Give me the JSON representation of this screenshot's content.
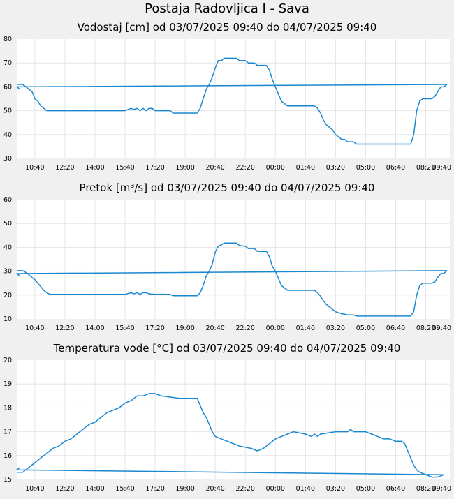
{
  "page": {
    "title": "Postaja Radovljica I - Sava"
  },
  "colors": {
    "line": "#1a88d0",
    "plot_background": "#ffffff",
    "page_background": "#f0f0f0",
    "grid": "#e6e6e6"
  },
  "chart_data": [
    {
      "type": "line",
      "title": "Vodostaj [cm] od 03/07/2025 09:40 do 04/07/2025 09:40",
      "xlabel": "",
      "ylabel": "",
      "x_ticks": [
        "10:40",
        "12:20",
        "14:00",
        "15:40",
        "17:20",
        "19:00",
        "20:40",
        "22:20",
        "00:00",
        "01:40",
        "03:20",
        "05:00",
        "06:40",
        "08:20",
        "09:40"
      ],
      "y_ticks": [
        "30",
        "40",
        "50",
        "60",
        "70",
        "80"
      ],
      "ylim": [
        30,
        80
      ],
      "grid": true,
      "series": [
        {
          "points": [
            [
              "09:40",
              61
            ],
            [
              "10:00",
              61
            ],
            [
              "10:10",
              60
            ],
            [
              "10:20",
              59
            ],
            [
              "10:30",
              58
            ],
            [
              "10:35",
              57
            ],
            [
              "10:40",
              55
            ],
            [
              "10:50",
              54
            ],
            [
              "11:00",
              52
            ],
            [
              "11:10",
              51
            ],
            [
              "11:20",
              50
            ],
            [
              "15:40",
              50
            ],
            [
              "16:00",
              51
            ],
            [
              "16:10",
              50.5
            ],
            [
              "16:20",
              51
            ],
            [
              "16:30",
              50
            ],
            [
              "16:40",
              51
            ],
            [
              "16:50",
              50
            ],
            [
              "17:00",
              51
            ],
            [
              "17:10",
              51
            ],
            [
              "17:20",
              50
            ],
            [
              "18:10",
              50
            ],
            [
              "18:20",
              49
            ],
            [
              "19:40",
              49
            ],
            [
              "19:50",
              51
            ],
            [
              "20:00",
              55
            ],
            [
              "20:10",
              59
            ],
            [
              "20:20",
              61
            ],
            [
              "20:30",
              64
            ],
            [
              "20:40",
              68
            ],
            [
              "20:50",
              71
            ],
            [
              "21:00",
              71
            ],
            [
              "21:10",
              72
            ],
            [
              "21:50",
              72
            ],
            [
              "22:00",
              71
            ],
            [
              "22:20",
              71
            ],
            [
              "22:30",
              70
            ],
            [
              "22:50",
              70
            ],
            [
              "23:00",
              69
            ],
            [
              "23:30",
              69
            ],
            [
              "23:40",
              67
            ],
            [
              "23:50",
              63
            ],
            [
              "00:00",
              60
            ],
            [
              "00:10",
              57
            ],
            [
              "00:20",
              54
            ],
            [
              "00:40",
              52
            ],
            [
              "02:10",
              52
            ],
            [
              "02:20",
              51
            ],
            [
              "02:30",
              49
            ],
            [
              "02:40",
              46
            ],
            [
              "02:50",
              44
            ],
            [
              "03:00",
              43
            ],
            [
              "03:10",
              42
            ],
            [
              "03:20",
              40
            ],
            [
              "03:30",
              39
            ],
            [
              "03:40",
              38
            ],
            [
              "03:50",
              38
            ],
            [
              "04:00",
              37
            ],
            [
              "04:20",
              37
            ],
            [
              "04:30",
              36
            ],
            [
              "07:30",
              36
            ],
            [
              "07:40",
              40
            ],
            [
              "07:50",
              50
            ],
            [
              "08:00",
              54
            ],
            [
              "08:10",
              55
            ],
            [
              "08:40",
              55
            ],
            [
              "08:50",
              56
            ],
            [
              "09:00",
              58
            ],
            [
              "09:10",
              60
            ],
            [
              "09:20",
              60
            ],
            [
              "09:30",
              61
            ],
            [
              "09:40",
              60
            ],
            [
              "09:50",
              59
            ]
          ]
        }
      ]
    },
    {
      "type": "line",
      "title": "Pretok [m³/s] od 03/07/2025 09:40 do 04/07/2025 09:40",
      "xlabel": "",
      "ylabel": "",
      "x_ticks": [
        "10:40",
        "12:20",
        "14:00",
        "15:40",
        "17:20",
        "19:00",
        "20:40",
        "22:20",
        "00:00",
        "01:40",
        "03:20",
        "05:00",
        "06:40",
        "08:20",
        "09:40"
      ],
      "y_ticks": [
        "10",
        "20",
        "30",
        "40",
        "50",
        "60"
      ],
      "ylim": [
        10,
        60
      ],
      "grid": true,
      "series": [
        {
          "points": [
            [
              "09:40",
              30.2
            ],
            [
              "10:00",
              30.2
            ],
            [
              "10:10",
              29.5
            ],
            [
              "10:20",
              28.5
            ],
            [
              "10:30",
              27.5
            ],
            [
              "10:40",
              26.5
            ],
            [
              "10:50",
              25
            ],
            [
              "11:00",
              23.5
            ],
            [
              "11:10",
              22
            ],
            [
              "11:20",
              21
            ],
            [
              "11:30",
              20.3
            ],
            [
              "15:40",
              20.3
            ],
            [
              "16:00",
              21
            ],
            [
              "16:10",
              20.5
            ],
            [
              "16:20",
              21
            ],
            [
              "16:30",
              20.3
            ],
            [
              "16:40",
              21
            ],
            [
              "16:50",
              21
            ],
            [
              "17:00",
              20.5
            ],
            [
              "17:20",
              20.3
            ],
            [
              "18:10",
              20.3
            ],
            [
              "18:20",
              19.7
            ],
            [
              "19:40",
              19.7
            ],
            [
              "19:50",
              21
            ],
            [
              "20:00",
              24
            ],
            [
              "20:10",
              28
            ],
            [
              "20:20",
              30
            ],
            [
              "20:30",
              33
            ],
            [
              "20:40",
              38
            ],
            [
              "20:50",
              40.5
            ],
            [
              "21:00",
              41
            ],
            [
              "21:10",
              41.8
            ],
            [
              "21:50",
              41.8
            ],
            [
              "22:00",
              40.8
            ],
            [
              "22:20",
              40.5
            ],
            [
              "22:30",
              39.5
            ],
            [
              "22:50",
              39.5
            ],
            [
              "23:00",
              38.3
            ],
            [
              "23:30",
              38.3
            ],
            [
              "23:40",
              36
            ],
            [
              "23:50",
              32
            ],
            [
              "00:00",
              30
            ],
            [
              "00:10",
              27
            ],
            [
              "00:20",
              24
            ],
            [
              "00:40",
              22
            ],
            [
              "02:10",
              22
            ],
            [
              "02:20",
              21
            ],
            [
              "02:30",
              19.5
            ],
            [
              "02:40",
              17.5
            ],
            [
              "02:50",
              16
            ],
            [
              "03:00",
              15
            ],
            [
              "03:10",
              14
            ],
            [
              "03:20",
              13
            ],
            [
              "03:40",
              12.2
            ],
            [
              "03:50",
              12
            ],
            [
              "04:00",
              11.7
            ],
            [
              "04:20",
              11.7
            ],
            [
              "04:30",
              11.2
            ],
            [
              "07:30",
              11.2
            ],
            [
              "07:40",
              13
            ],
            [
              "07:50",
              20
            ],
            [
              "08:00",
              24
            ],
            [
              "08:10",
              25
            ],
            [
              "08:40",
              25
            ],
            [
              "08:50",
              25.5
            ],
            [
              "09:00",
              27.5
            ],
            [
              "09:10",
              29
            ],
            [
              "09:20",
              29
            ],
            [
              "09:30",
              30.2
            ],
            [
              "09:40",
              29
            ],
            [
              "09:50",
              28
            ]
          ]
        }
      ]
    },
    {
      "type": "line",
      "title": "Temperatura vode [°C] od 03/07/2025 09:40 do 04/07/2025 09:40",
      "xlabel": "",
      "ylabel": "",
      "x_ticks": [
        "10:40",
        "12:20",
        "14:00",
        "15:40",
        "17:20",
        "19:00",
        "20:40",
        "22:20",
        "00:00",
        "01:40",
        "03:20",
        "05:00",
        "06:40",
        "08:20",
        "09:40"
      ],
      "y_ticks": [
        "15",
        "16",
        "17",
        "18",
        "19",
        "20"
      ],
      "ylim": [
        15,
        20
      ],
      "grid": true,
      "series": [
        {
          "points": [
            [
              "09:40",
              15.3
            ],
            [
              "10:00",
              15.3
            ],
            [
              "10:10",
              15.4
            ],
            [
              "10:20",
              15.5
            ],
            [
              "10:40",
              15.7
            ],
            [
              "11:00",
              15.9
            ],
            [
              "11:20",
              16.1
            ],
            [
              "11:40",
              16.3
            ],
            [
              "12:00",
              16.4
            ],
            [
              "12:20",
              16.6
            ],
            [
              "12:40",
              16.7
            ],
            [
              "13:00",
              16.9
            ],
            [
              "13:20",
              17.1
            ],
            [
              "13:40",
              17.3
            ],
            [
              "14:00",
              17.4
            ],
            [
              "14:20",
              17.6
            ],
            [
              "14:40",
              17.8
            ],
            [
              "15:00",
              17.9
            ],
            [
              "15:20",
              18.0
            ],
            [
              "15:40",
              18.2
            ],
            [
              "16:00",
              18.3
            ],
            [
              "16:20",
              18.5
            ],
            [
              "16:40",
              18.5
            ],
            [
              "17:00",
              18.6
            ],
            [
              "17:20",
              18.6
            ],
            [
              "17:40",
              18.5
            ],
            [
              "18:40",
              18.4
            ],
            [
              "19:40",
              18.4
            ],
            [
              "19:50",
              18.1
            ],
            [
              "20:00",
              17.8
            ],
            [
              "20:10",
              17.6
            ],
            [
              "20:20",
              17.3
            ],
            [
              "20:30",
              17.0
            ],
            [
              "20:40",
              16.8
            ],
            [
              "21:00",
              16.7
            ],
            [
              "21:20",
              16.6
            ],
            [
              "21:40",
              16.5
            ],
            [
              "22:00",
              16.4
            ],
            [
              "22:40",
              16.3
            ],
            [
              "23:00",
              16.2
            ],
            [
              "23:20",
              16.3
            ],
            [
              "23:40",
              16.5
            ],
            [
              "00:00",
              16.7
            ],
            [
              "00:20",
              16.8
            ],
            [
              "00:40",
              16.9
            ],
            [
              "01:00",
              17.0
            ],
            [
              "01:40",
              16.9
            ],
            [
              "02:00",
              16.8
            ],
            [
              "02:10",
              16.9
            ],
            [
              "02:20",
              16.8
            ],
            [
              "02:30",
              16.9
            ],
            [
              "03:20",
              17.0
            ],
            [
              "04:00",
              17.0
            ],
            [
              "04:10",
              17.1
            ],
            [
              "04:20",
              17.0
            ],
            [
              "05:00",
              17.0
            ],
            [
              "05:20",
              16.9
            ],
            [
              "05:40",
              16.8
            ],
            [
              "06:00",
              16.7
            ],
            [
              "06:20",
              16.7
            ],
            [
              "06:40",
              16.6
            ],
            [
              "07:00",
              16.6
            ],
            [
              "07:10",
              16.5
            ],
            [
              "07:20",
              16.2
            ],
            [
              "07:30",
              15.9
            ],
            [
              "07:40",
              15.6
            ],
            [
              "07:50",
              15.4
            ],
            [
              "08:00",
              15.3
            ],
            [
              "08:20",
              15.2
            ],
            [
              "08:40",
              15.1
            ],
            [
              "09:00",
              15.1
            ],
            [
              "09:20",
              15.2
            ],
            [
              "09:40",
              15.4
            ],
            [
              "09:50",
              15.5
            ]
          ]
        }
      ]
    }
  ]
}
